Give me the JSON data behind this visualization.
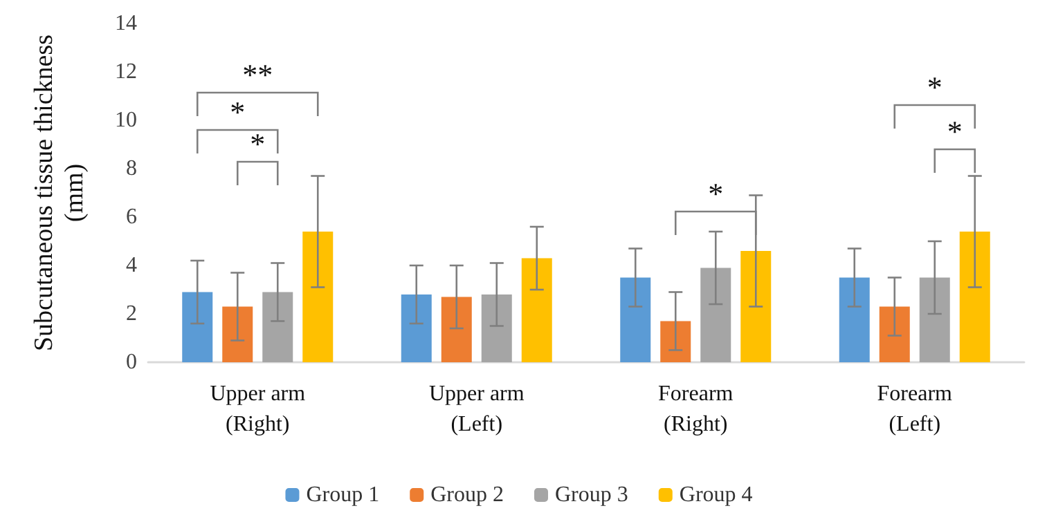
{
  "chart_data": {
    "type": "bar",
    "ylabel": "Subcutaneous tissue thickness (mm)",
    "categories": [
      "Upper arm\n(Right)",
      "Upper arm\n(Left)",
      "Forearm\n(Right)",
      "Forearm\n(Left)"
    ],
    "series": [
      {
        "name": "Group 1",
        "color": "#5b9bd5",
        "values": [
          2.9,
          2.8,
          3.5,
          3.5
        ],
        "errors": [
          1.3,
          1.2,
          1.2,
          1.2
        ]
      },
      {
        "name": "Group 2",
        "color": "#ed7d31",
        "values": [
          2.3,
          2.7,
          1.7,
          2.3
        ],
        "errors": [
          1.4,
          1.3,
          1.2,
          1.2
        ]
      },
      {
        "name": "Group 3",
        "color": "#a5a5a5",
        "values": [
          2.9,
          2.8,
          3.9,
          3.5
        ],
        "errors": [
          1.2,
          1.3,
          1.5,
          1.5
        ]
      },
      {
        "name": "Group 4",
        "color": "#ffc000",
        "values": [
          5.4,
          4.3,
          4.6,
          5.4
        ],
        "errors": [
          2.3,
          1.3,
          2.3,
          2.3
        ]
      }
    ],
    "ylim": [
      0,
      14
    ],
    "yticks": [
      0,
      2,
      4,
      6,
      8,
      10,
      12,
      14
    ],
    "grid": false,
    "legend": "bottom",
    "annotations": [
      "**",
      "*",
      "*",
      "*",
      "*",
      "*"
    ]
  }
}
